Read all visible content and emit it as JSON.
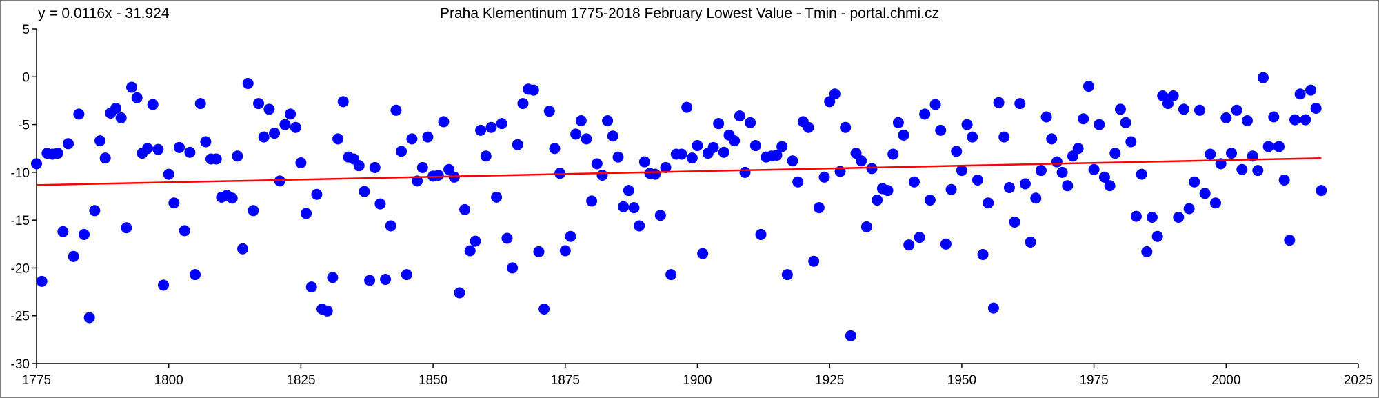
{
  "chart_data": {
    "type": "scatter",
    "title": "Praha Klementinum 1775-2018 February Lowest Value - Tmin - portal.chmi.cz",
    "annotation": "y = 0.0116x - 31.924",
    "xlabel": "",
    "ylabel": "",
    "xlim": [
      1775,
      2025
    ],
    "ylim": [
      -30,
      5
    ],
    "xticks": [
      1775,
      1800,
      1825,
      1850,
      1875,
      1900,
      1925,
      1950,
      1975,
      2000,
      2025
    ],
    "yticks": [
      5,
      0,
      -5,
      -10,
      -15,
      -20,
      -25,
      -30
    ],
    "grid": false,
    "legend": "none",
    "colors": {
      "points": "#0000ff",
      "trend": "#ff0000",
      "axis": "#000000",
      "border": "#7f7f7f"
    },
    "trendline": {
      "slope": 0.0116,
      "intercept": -31.924,
      "x_range": [
        1775,
        2018
      ]
    },
    "x": [
      1775,
      1776,
      1777,
      1778,
      1779,
      1780,
      1781,
      1782,
      1783,
      1784,
      1785,
      1786,
      1787,
      1788,
      1789,
      1790,
      1791,
      1792,
      1793,
      1794,
      1795,
      1796,
      1797,
      1798,
      1799,
      1800,
      1801,
      1802,
      1803,
      1804,
      1805,
      1806,
      1807,
      1808,
      1809,
      1810,
      1811,
      1812,
      1813,
      1814,
      1815,
      1816,
      1817,
      1818,
      1819,
      1820,
      1821,
      1822,
      1823,
      1824,
      1825,
      1826,
      1827,
      1828,
      1829,
      1830,
      1831,
      1832,
      1833,
      1834,
      1835,
      1836,
      1837,
      1838,
      1839,
      1840,
      1841,
      1842,
      1843,
      1844,
      1845,
      1846,
      1847,
      1848,
      1849,
      1850,
      1851,
      1852,
      1853,
      1854,
      1855,
      1856,
      1857,
      1858,
      1859,
      1860,
      1861,
      1862,
      1863,
      1864,
      1865,
      1866,
      1867,
      1868,
      1869,
      1870,
      1871,
      1872,
      1873,
      1874,
      1875,
      1876,
      1877,
      1878,
      1879,
      1880,
      1881,
      1882,
      1883,
      1884,
      1885,
      1886,
      1887,
      1888,
      1889,
      1890,
      1891,
      1892,
      1893,
      1894,
      1895,
      1896,
      1897,
      1898,
      1899,
      1900,
      1901,
      1902,
      1903,
      1904,
      1905,
      1906,
      1907,
      1908,
      1909,
      1910,
      1911,
      1912,
      1913,
      1914,
      1915,
      1916,
      1917,
      1918,
      1919,
      1920,
      1921,
      1922,
      1923,
      1924,
      1925,
      1926,
      1927,
      1928,
      1929,
      1930,
      1931,
      1932,
      1933,
      1934,
      1935,
      1936,
      1937,
      1938,
      1939,
      1940,
      1941,
      1942,
      1943,
      1944,
      1945,
      1946,
      1947,
      1948,
      1949,
      1950,
      1951,
      1952,
      1953,
      1954,
      1955,
      1956,
      1957,
      1958,
      1959,
      1960,
      1961,
      1962,
      1963,
      1964,
      1965,
      1966,
      1967,
      1968,
      1969,
      1970,
      1971,
      1972,
      1973,
      1974,
      1975,
      1976,
      1977,
      1978,
      1979,
      1980,
      1981,
      1982,
      1983,
      1984,
      1985,
      1986,
      1987,
      1988,
      1989,
      1990,
      1991,
      1992,
      1993,
      1994,
      1995,
      1996,
      1997,
      1998,
      1999,
      2000,
      2001,
      2002,
      2003,
      2004,
      2005,
      2006,
      2007,
      2008,
      2009,
      2010,
      2011,
      2012,
      2013,
      2014,
      2015,
      2016,
      2017,
      2018
    ],
    "y": [
      -9.1,
      -21.4,
      -8.0,
      -8.1,
      -8.0,
      -16.2,
      -7.0,
      -18.8,
      -3.9,
      -16.5,
      -25.2,
      -14.0,
      -6.7,
      -8.5,
      -3.8,
      -3.3,
      -4.3,
      -15.8,
      -1.1,
      -2.2,
      -8.0,
      -7.5,
      -2.9,
      -7.6,
      -21.8,
      -10.2,
      -13.2,
      -7.4,
      -16.1,
      -7.9,
      -20.7,
      -2.8,
      -6.8,
      -8.6,
      -8.6,
      -12.6,
      -12.4,
      -12.7,
      -8.3,
      -18.0,
      -0.7,
      -14.0,
      -2.8,
      -6.3,
      -3.4,
      -5.9,
      -10.9,
      -5.0,
      -3.9,
      -5.3,
      -9.0,
      -14.3,
      -22.0,
      -12.3,
      -24.3,
      -24.5,
      -21.0,
      -6.5,
      -2.6,
      -8.4,
      -8.6,
      -9.3,
      -12.0,
      -21.3,
      -9.5,
      -13.3,
      -21.2,
      -15.6,
      -3.5,
      -7.8,
      -20.7,
      -6.5,
      -10.9,
      -9.5,
      -6.3,
      -10.4,
      -10.3,
      -4.7,
      -9.7,
      -10.5,
      -22.6,
      -13.9,
      -18.2,
      -17.2,
      -5.6,
      -8.3,
      -5.3,
      -12.6,
      -4.9,
      -16.9,
      -20.0,
      -7.1,
      -2.8,
      -1.3,
      -1.4,
      -18.3,
      -24.3,
      -3.6,
      -7.5,
      -10.1,
      -18.2,
      -16.7,
      -6.0,
      -4.6,
      -6.5,
      -13.0,
      -9.1,
      -10.3,
      -4.6,
      -6.2,
      -8.4,
      -13.6,
      -11.9,
      -13.7,
      -15.6,
      -8.9,
      -10.1,
      -10.2,
      -14.5,
      -9.5,
      -20.7,
      -8.1,
      -8.1,
      -3.2,
      -8.5,
      -7.2,
      -18.5,
      -8.0,
      -7.4,
      -4.9,
      -7.9,
      -6.1,
      -6.7,
      -4.1,
      -10.0,
      -4.8,
      -7.2,
      -16.5,
      -8.4,
      -8.3,
      -8.2,
      -7.3,
      -20.7,
      -8.8,
      -11.0,
      -4.7,
      -5.3,
      -19.3,
      -13.7,
      -10.5,
      -2.6,
      -1.8,
      -9.9,
      -5.3,
      -27.1,
      -8.0,
      -8.8,
      -15.7,
      -9.6,
      -12.9,
      -11.7,
      -11.9,
      -8.1,
      -4.8,
      -6.1,
      -17.6,
      -11.0,
      -16.8,
      -3.9,
      -12.9,
      -2.9,
      -5.6,
      -17.5,
      -11.8,
      -7.8,
      -9.8,
      -5.0,
      -6.3,
      -10.8,
      -18.6,
      -13.2,
      -24.2,
      -2.7,
      -6.3,
      -11.6,
      -15.2,
      -2.8,
      -11.2,
      -17.3,
      -12.7,
      -9.8,
      -4.2,
      -6.5,
      -8.9,
      -10.0,
      -11.4,
      -8.3,
      -7.5,
      -4.4,
      -1.0,
      -9.7,
      -5.0,
      -10.5,
      -11.4,
      -8.0,
      -3.4,
      -4.8,
      -6.8,
      -14.6,
      -10.2,
      -18.3,
      -14.7,
      -16.7,
      -2.0,
      -2.8,
      -2.0,
      -14.7,
      -3.4,
      -13.8,
      -11.0,
      -3.5,
      -12.2,
      -8.1,
      -13.2,
      -9.1,
      -4.3,
      -8.0,
      -3.5,
      -9.7,
      -4.6,
      -8.3,
      -9.8,
      -0.1,
      -7.3,
      -4.2,
      -7.3,
      -10.8,
      -17.1,
      -4.5,
      -1.8,
      -4.5,
      -1.4,
      -3.3,
      -11.9
    ]
  }
}
